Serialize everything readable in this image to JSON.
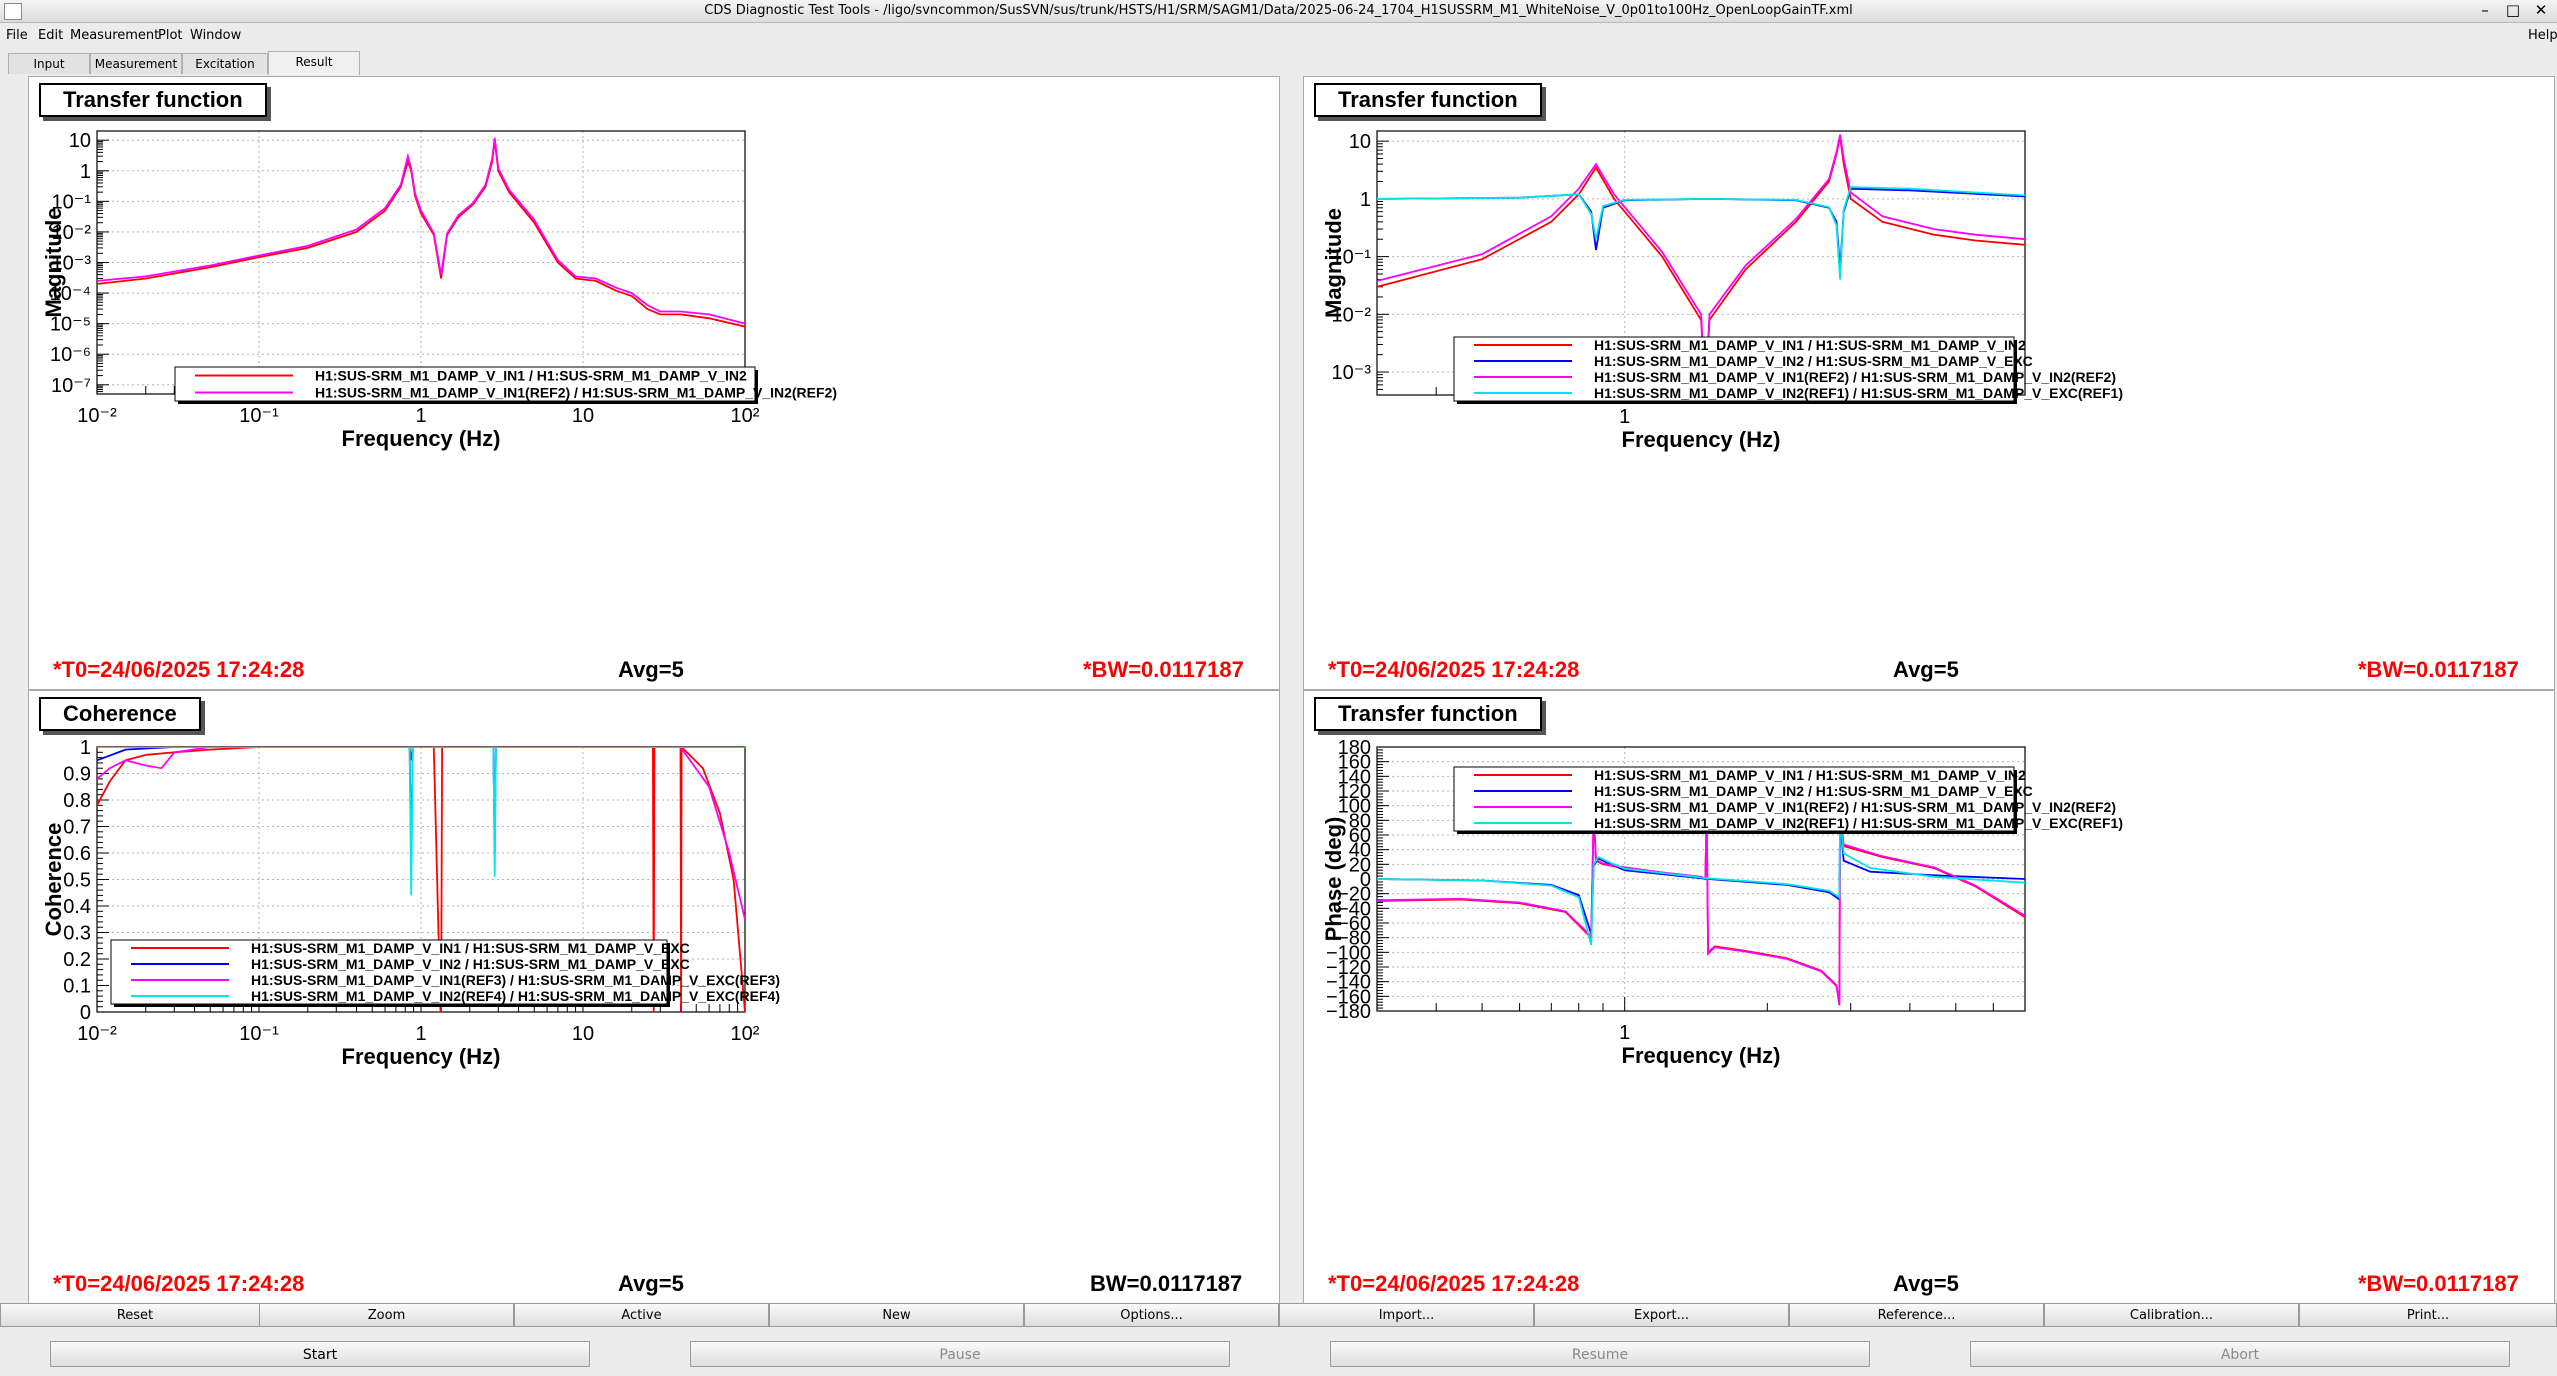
{
  "window": {
    "title": "CDS Diagnostic Test Tools - /ligo/svncommon/SusSVN/sus/trunk/HSTS/H1/SRM/SAGM1/Data/2025-06-24_1704_H1SUSSRM_M1_WhiteNoise_V_0p01to100Hz_OpenLoopGainTF.xml",
    "minimize": "–",
    "maximize": "□",
    "close": "✕"
  },
  "menu": {
    "file": "File",
    "edit": "Edit",
    "measurement": "Measurement",
    "plot": "Plot",
    "window": "Window",
    "help": "Help"
  },
  "tabs": [
    "Input",
    "Measurement",
    "Excitation",
    "Result"
  ],
  "panels": {
    "tl": {
      "title": "Transfer function",
      "ylabel": "Magnitude",
      "xlabel": "Frequency (Hz)",
      "yticks": [
        "10",
        "1",
        "10⁻¹",
        "10⁻²",
        "10⁻³",
        "10⁻⁴",
        "10⁻⁵",
        "10⁻⁶",
        "10⁻⁷"
      ],
      "xticks": [
        "10⁻²",
        "10⁻¹",
        "1",
        "10",
        "10²"
      ],
      "legend": [
        "H1:SUS-SRM_M1_DAMP_V_IN1 / H1:SUS-SRM_M1_DAMP_V_IN2",
        "H1:SUS-SRM_M1_DAMP_V_IN1(REF2) / H1:SUS-SRM_M1_DAMP_V_IN2(REF2)"
      ],
      "t0": "*T0=24/06/2025 17:24:28",
      "avg": "Avg=5",
      "bw": "*BW=0.0117187"
    },
    "tr": {
      "title": "Transfer function",
      "ylabel": "Magnitude",
      "xlabel": "Frequency (Hz)",
      "yticks": [
        "10",
        "1",
        "10⁻¹",
        "10⁻²",
        "10⁻³"
      ],
      "xticks": [
        "1"
      ],
      "legend": [
        "H1:SUS-SRM_M1_DAMP_V_IN1 / H1:SUS-SRM_M1_DAMP_V_IN2",
        "H1:SUS-SRM_M1_DAMP_V_IN2 / H1:SUS-SRM_M1_DAMP_V_EXC",
        "H1:SUS-SRM_M1_DAMP_V_IN1(REF2) / H1:SUS-SRM_M1_DAMP_V_IN2(REF2)",
        "H1:SUS-SRM_M1_DAMP_V_IN2(REF1) / H1:SUS-SRM_M1_DAMP_V_EXC(REF1)"
      ],
      "t0": "*T0=24/06/2025 17:24:28",
      "avg": "Avg=5",
      "bw": "*BW=0.0117187"
    },
    "bl": {
      "title": "Coherence",
      "ylabel": "Coherence",
      "xlabel": "Frequency (Hz)",
      "yticks": [
        "1",
        "0.9",
        "0.8",
        "0.7",
        "0.6",
        "0.5",
        "0.4",
        "0.3",
        "0.2",
        "0.1",
        "0"
      ],
      "xticks": [
        "10⁻²",
        "10⁻¹",
        "1",
        "10",
        "10²"
      ],
      "legend": [
        "H1:SUS-SRM_M1_DAMP_V_IN1 / H1:SUS-SRM_M1_DAMP_V_EXC",
        "H1:SUS-SRM_M1_DAMP_V_IN2 / H1:SUS-SRM_M1_DAMP_V_EXC",
        "H1:SUS-SRM_M1_DAMP_V_IN1(REF3) / H1:SUS-SRM_M1_DAMP_V_EXC(REF3)",
        "H1:SUS-SRM_M1_DAMP_V_IN2(REF4) / H1:SUS-SRM_M1_DAMP_V_EXC(REF4)"
      ],
      "t0": "*T0=24/06/2025 17:24:28",
      "avg": "Avg=5",
      "bw": "BW=0.0117187"
    },
    "br": {
      "title": "Transfer function",
      "ylabel": "Phase (deg)",
      "xlabel": "Frequency (Hz)",
      "yticks": [
        "180",
        "160",
        "140",
        "120",
        "100",
        "80",
        "60",
        "40",
        "20",
        "0",
        "−20",
        "−40",
        "−60",
        "−80",
        "−100",
        "−120",
        "−140",
        "−160",
        "−180"
      ],
      "xticks": [
        "1"
      ],
      "legend": [
        "H1:SUS-SRM_M1_DAMP_V_IN1 / H1:SUS-SRM_M1_DAMP_V_IN2",
        "H1:SUS-SRM_M1_DAMP_V_IN2 / H1:SUS-SRM_M1_DAMP_V_EXC",
        "H1:SUS-SRM_M1_DAMP_V_IN1(REF2) / H1:SUS-SRM_M1_DAMP_V_IN2(REF2)",
        "H1:SUS-SRM_M1_DAMP_V_IN2(REF1) / H1:SUS-SRM_M1_DAMP_V_EXC(REF1)"
      ],
      "t0": "*T0=24/06/2025 17:24:28",
      "avg": "Avg=5",
      "bw": "*BW=0.0117187"
    }
  },
  "series_colors": {
    "red": "#ff0000",
    "blue": "#0000ff",
    "magenta": "#ff00ff",
    "cyan": "#00e5e5"
  },
  "toolbar": [
    "Reset",
    "Zoom",
    "Active",
    "New",
    "Options...",
    "Import...",
    "Export...",
    "Reference...",
    "Calibration...",
    "Print..."
  ],
  "actions": [
    "Start",
    "Pause",
    "Resume",
    "Abort"
  ],
  "chart_data": [
    {
      "type": "line",
      "panel": "top-left",
      "title": "Transfer function",
      "xlabel": "Frequency (Hz)",
      "ylabel": "Magnitude",
      "xscale": "log",
      "yscale": "log",
      "xlim": [
        0.01,
        100
      ],
      "ylim": [
        5e-08,
        20
      ],
      "grid": true,
      "legend_position": "bottom-right",
      "series": [
        {
          "name": "H1:SUS-SRM_M1_DAMP_V_IN1 / H1:SUS-SRM_M1_DAMP_V_IN2",
          "color": "#ff0000",
          "x": [
            0.01,
            0.02,
            0.05,
            0.1,
            0.2,
            0.4,
            0.6,
            0.75,
            0.83,
            0.87,
            0.92,
            1.0,
            1.2,
            1.33,
            1.45,
            1.7,
            2.1,
            2.5,
            2.75,
            2.85,
            3.0,
            3.5,
            5.0,
            7.0,
            9.0,
            12.0,
            16.0,
            20.0,
            25.0,
            30.0,
            40.0,
            60.0,
            100.0
          ],
          "y": [
            0.0002,
            0.0003,
            0.0007,
            0.0015,
            0.003,
            0.01,
            0.05,
            0.3,
            2.0,
            1.0,
            0.15,
            0.04,
            0.008,
            0.0003,
            0.008,
            0.03,
            0.08,
            0.3,
            2.0,
            10.0,
            1.0,
            0.2,
            0.02,
            0.001,
            0.0003,
            0.00025,
            0.00012,
            8e-05,
            3e-05,
            2e-05,
            2e-05,
            1.5e-05,
            8e-06
          ]
        },
        {
          "name": "H1:SUS-SRM_M1_DAMP_V_IN1(REF2) / H1:SUS-SRM_M1_DAMP_V_IN2(REF2)",
          "color": "#ff00ff",
          "x": [
            0.01,
            0.02,
            0.05,
            0.1,
            0.2,
            0.4,
            0.6,
            0.75,
            0.83,
            0.87,
            0.92,
            1.0,
            1.2,
            1.33,
            1.45,
            1.7,
            2.1,
            2.5,
            2.75,
            2.85,
            3.0,
            3.5,
            5.0,
            7.0,
            9.0,
            12.0,
            16.0,
            20.0,
            25.0,
            30.0,
            40.0,
            60.0,
            100.0
          ],
          "y": [
            0.00025,
            0.00035,
            0.0008,
            0.0017,
            0.0035,
            0.012,
            0.06,
            0.35,
            3.0,
            1.2,
            0.18,
            0.05,
            0.009,
            0.0004,
            0.009,
            0.035,
            0.09,
            0.35,
            2.5,
            12.0,
            1.2,
            0.24,
            0.025,
            0.0012,
            0.00035,
            0.0003,
            0.00015,
            0.0001,
            4e-05,
            2.5e-05,
            2.5e-05,
            2e-05,
            1e-05
          ]
        }
      ]
    },
    {
      "type": "line",
      "panel": "top-right",
      "title": "Transfer function",
      "xlabel": "Frequency (Hz)",
      "ylabel": "Magnitude",
      "xscale": "log",
      "yscale": "log",
      "xlim": [
        0.3,
        7.0
      ],
      "ylim": [
        0.0004,
        15
      ],
      "grid": true,
      "legend_position": "bottom-right",
      "series": [
        {
          "name": "H1:SUS-SRM_M1_DAMP_V_IN1 / H1:SUS-SRM_M1_DAMP_V_IN2",
          "color": "#ff0000",
          "x": [
            0.3,
            0.5,
            0.7,
            0.8,
            0.87,
            0.95,
            1.2,
            1.45,
            1.48,
            1.51,
            1.8,
            2.3,
            2.7,
            2.8,
            2.85,
            2.9,
            3.0,
            3.5,
            4.5,
            5.5,
            7.0
          ],
          "y": [
            0.03,
            0.09,
            0.4,
            1.2,
            3.5,
            1.0,
            0.1,
            0.008,
            0.0003,
            0.008,
            0.06,
            0.4,
            2.0,
            6.0,
            12.0,
            4.0,
            1.0,
            0.4,
            0.24,
            0.19,
            0.16
          ]
        },
        {
          "name": "H1:SUS-SRM_M1_DAMP_V_IN2 / H1:SUS-SRM_M1_DAMP_V_EXC",
          "color": "#0000ff",
          "x": [
            0.3,
            0.6,
            0.8,
            0.85,
            0.87,
            0.9,
            1.0,
            1.5,
            2.3,
            2.7,
            2.8,
            2.85,
            2.9,
            3.0,
            4.0,
            7.0
          ],
          "y": [
            1.0,
            1.05,
            1.2,
            0.6,
            0.13,
            0.7,
            0.95,
            1.0,
            0.95,
            0.7,
            0.4,
            0.06,
            0.6,
            1.5,
            1.4,
            1.1
          ]
        },
        {
          "name": "H1:SUS-SRM_M1_DAMP_V_IN1(REF2) / H1:SUS-SRM_M1_DAMP_V_IN2(REF2)",
          "color": "#ff00ff",
          "x": [
            0.3,
            0.5,
            0.7,
            0.8,
            0.87,
            0.95,
            1.2,
            1.45,
            1.48,
            1.51,
            1.8,
            2.3,
            2.7,
            2.8,
            2.85,
            2.9,
            3.0,
            3.5,
            4.5,
            5.5,
            7.0
          ],
          "y": [
            0.038,
            0.11,
            0.5,
            1.5,
            4.0,
            1.2,
            0.12,
            0.01,
            0.0004,
            0.01,
            0.07,
            0.45,
            2.2,
            6.5,
            13.0,
            5.0,
            1.3,
            0.5,
            0.3,
            0.24,
            0.2
          ]
        },
        {
          "name": "H1:SUS-SRM_M1_DAMP_V_IN2(REF1) / H1:SUS-SRM_M1_DAMP_V_EXC(REF1)",
          "color": "#00e5e5",
          "x": [
            0.3,
            0.6,
            0.8,
            0.85,
            0.87,
            0.9,
            1.0,
            1.5,
            2.3,
            2.7,
            2.8,
            2.85,
            2.9,
            3.0,
            4.0,
            7.0
          ],
          "y": [
            1.0,
            1.05,
            1.2,
            0.55,
            0.2,
            0.75,
            0.96,
            1.0,
            0.96,
            0.72,
            0.35,
            0.04,
            0.65,
            1.6,
            1.5,
            1.15
          ]
        }
      ]
    },
    {
      "type": "line",
      "panel": "bottom-left",
      "title": "Coherence",
      "xlabel": "Frequency (Hz)",
      "ylabel": "Coherence",
      "xscale": "log",
      "yscale": "linear",
      "xlim": [
        0.01,
        100
      ],
      "ylim": [
        0,
        1
      ],
      "grid": true,
      "legend_position": "bottom-left",
      "series": [
        {
          "name": "H1:SUS-SRM_M1_DAMP_V_IN1 / H1:SUS-SRM_M1_DAMP_V_EXC",
          "color": "#ff0000",
          "x": [
            0.01,
            0.012,
            0.015,
            0.02,
            0.03,
            0.05,
            0.1,
            0.3,
            0.85,
            0.87,
            0.89,
            1.2,
            1.32,
            1.33,
            1.35,
            3.0,
            20.0,
            27.0,
            27.3,
            27.6,
            40.0,
            40.3,
            40.6,
            55.0,
            70.0,
            85.0,
            100.0
          ],
          "y": [
            0.78,
            0.87,
            0.95,
            0.97,
            0.98,
            0.99,
            1.0,
            1.0,
            1.0,
            0.95,
            1.0,
            1.0,
            0.0,
            0.0,
            1.0,
            1.0,
            1.0,
            1.0,
            0.0,
            1.0,
            1.0,
            0.0,
            1.0,
            0.92,
            0.75,
            0.5,
            0.0
          ]
        },
        {
          "name": "H1:SUS-SRM_M1_DAMP_V_IN2 / H1:SUS-SRM_M1_DAMP_V_EXC",
          "color": "#0000ff",
          "x": [
            0.01,
            0.015,
            0.03,
            0.1,
            0.85,
            0.87,
            0.89,
            2.8,
            2.85,
            2.9,
            100.0
          ],
          "y": [
            0.95,
            0.99,
            1.0,
            1.0,
            1.0,
            0.58,
            1.0,
            1.0,
            0.6,
            1.0,
            1.0
          ]
        },
        {
          "name": "H1:SUS-SRM_M1_DAMP_V_IN1(REF3) / H1:SUS-SRM_M1_DAMP_V_EXC(REF3)",
          "color": "#ff00ff",
          "x": [
            0.01,
            0.012,
            0.015,
            0.02,
            0.025,
            0.03,
            0.05,
            0.1,
            0.3,
            20.0,
            40.0,
            60.0,
            80.0,
            100.0
          ],
          "y": [
            0.88,
            0.92,
            0.95,
            0.93,
            0.92,
            0.98,
            1.0,
            1.0,
            1.0,
            1.0,
            1.0,
            0.85,
            0.6,
            0.35
          ]
        },
        {
          "name": "H1:SUS-SRM_M1_DAMP_V_IN2(REF4) / H1:SUS-SRM_M1_DAMP_V_EXC(REF4)",
          "color": "#00e5e5",
          "x": [
            0.01,
            0.85,
            0.87,
            0.89,
            2.8,
            2.85,
            2.9,
            100.0
          ],
          "y": [
            1.0,
            1.0,
            0.44,
            1.0,
            1.0,
            0.51,
            1.0,
            1.0
          ]
        }
      ]
    },
    {
      "type": "line",
      "panel": "bottom-right",
      "title": "Transfer function",
      "xlabel": "Frequency (Hz)",
      "ylabel": "Phase (deg)",
      "xscale": "log",
      "yscale": "linear",
      "xlim": [
        0.3,
        7.0
      ],
      "ylim": [
        -180,
        180
      ],
      "grid": true,
      "legend_position": "top-right",
      "series": [
        {
          "name": "H1:SUS-SRM_M1_DAMP_V_IN1 / H1:SUS-SRM_M1_DAMP_V_IN2",
          "color": "#ff0000",
          "x": [
            0.3,
            0.45,
            0.6,
            0.75,
            0.85,
            0.86,
            0.87,
            0.9,
            1.0,
            1.2,
            1.45,
            1.48,
            1.49,
            1.5,
            1.55,
            1.8,
            2.2,
            2.6,
            2.8,
            2.84,
            2.85,
            2.9,
            3.5,
            4.5,
            5.5,
            7.0
          ],
          "y": [
            -30,
            -28,
            -33,
            -45,
            -80,
            90,
            25,
            20,
            15,
            8,
            2,
            0,
            90,
            -100,
            -92,
            -98,
            -108,
            -125,
            -145,
            -172,
            90,
            45,
            30,
            15,
            -10,
            -52
          ]
        },
        {
          "name": "H1:SUS-SRM_M1_DAMP_V_IN2 / H1:SUS-SRM_M1_DAMP_V_EXC",
          "color": "#0000ff",
          "x": [
            0.3,
            0.5,
            0.7,
            0.8,
            0.85,
            0.86,
            0.88,
            0.92,
            1.0,
            1.5,
            2.2,
            2.7,
            2.84,
            2.85,
            2.9,
            3.3,
            4.5,
            7.0
          ],
          "y": [
            0,
            -2,
            -8,
            -22,
            -75,
            18,
            28,
            22,
            12,
            0,
            -8,
            -18,
            -28,
            80,
            25,
            10,
            5,
            0
          ]
        },
        {
          "name": "H1:SUS-SRM_M1_DAMP_V_IN1(REF2) / H1:SUS-SRM_M1_DAMP_V_IN2(REF2)",
          "color": "#ff00ff",
          "x": [
            0.3,
            0.45,
            0.6,
            0.75,
            0.85,
            0.86,
            0.87,
            0.9,
            1.0,
            1.2,
            1.45,
            1.48,
            1.49,
            1.5,
            1.55,
            1.8,
            2.2,
            2.6,
            2.8,
            2.84,
            2.85,
            2.9,
            3.5,
            4.5,
            5.5,
            7.0
          ],
          "y": [
            -29,
            -27,
            -32,
            -44,
            -78,
            88,
            26,
            21,
            16,
            9,
            3,
            1,
            88,
            -102,
            -93,
            -99,
            -109,
            -126,
            -146,
            -170,
            88,
            47,
            31,
            16,
            -9,
            -50
          ]
        },
        {
          "name": "H1:SUS-SRM_M1_DAMP_V_IN2(REF1) / H1:SUS-SRM_M1_DAMP_V_EXC(REF1)",
          "color": "#00e5e5",
          "x": [
            0.3,
            0.5,
            0.7,
            0.8,
            0.85,
            0.86,
            0.88,
            0.92,
            1.0,
            1.5,
            2.2,
            2.7,
            2.84,
            2.85,
            2.9,
            3.3,
            4.5,
            7.0
          ],
          "y": [
            0,
            -2,
            -9,
            -25,
            -90,
            20,
            30,
            24,
            14,
            1,
            -7,
            -16,
            -25,
            85,
            35,
            15,
            3,
            -5
          ]
        }
      ]
    }
  ]
}
